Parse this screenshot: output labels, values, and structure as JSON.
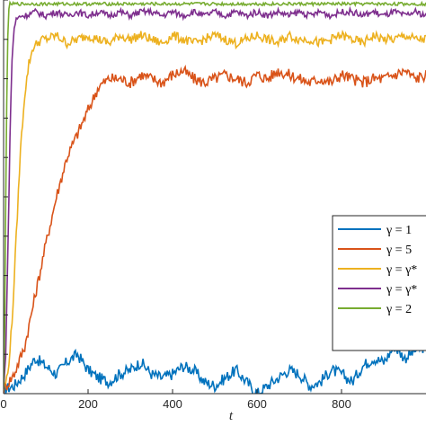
{
  "chart_data": {
    "type": "line",
    "xlabel": "t",
    "ylabel": "",
    "title": "",
    "xlim": [
      0,
      1000
    ],
    "ylim": [
      0,
      1
    ],
    "x_ticks": [
      0,
      200,
      400,
      600,
      800
    ],
    "x_tick_labels": [
      "0",
      "200",
      "400",
      "600",
      "800"
    ],
    "grid": false,
    "legend_position": "lower-right",
    "series": [
      {
        "name": "γ = 1",
        "color": "#0072BD",
        "x": [
          0,
          25,
          50,
          75,
          100,
          125,
          150,
          175,
          200,
          225,
          250,
          275,
          300,
          325,
          350,
          375,
          400,
          425,
          450,
          475,
          500,
          525,
          550,
          575,
          600,
          625,
          650,
          675,
          700,
          725,
          750,
          775,
          800,
          825,
          850,
          875,
          900,
          925,
          950,
          975,
          1000
        ],
        "y": [
          0.01,
          0.02,
          0.05,
          0.09,
          0.07,
          0.05,
          0.08,
          0.1,
          0.06,
          0.04,
          0.03,
          0.05,
          0.06,
          0.08,
          0.05,
          0.04,
          0.05,
          0.07,
          0.06,
          0.03,
          0.02,
          0.04,
          0.06,
          0.03,
          0.0,
          0.02,
          0.04,
          0.06,
          0.05,
          0.02,
          0.03,
          0.06,
          0.05,
          0.03,
          0.07,
          0.09,
          0.08,
          0.12,
          0.09,
          0.11,
          0.12
        ]
      },
      {
        "name": "γ = 5",
        "color": "#D95319",
        "x": [
          0,
          25,
          50,
          75,
          100,
          125,
          150,
          175,
          200,
          225,
          250,
          275,
          300,
          325,
          350,
          375,
          400,
          425,
          450,
          475,
          500,
          525,
          550,
          575,
          600,
          625,
          650,
          675,
          700,
          725,
          750,
          775,
          800,
          825,
          850,
          875,
          900,
          925,
          950,
          975,
          1000
        ],
        "y": [
          0.01,
          0.05,
          0.12,
          0.25,
          0.38,
          0.5,
          0.6,
          0.66,
          0.72,
          0.78,
          0.8,
          0.8,
          0.79,
          0.81,
          0.8,
          0.79,
          0.81,
          0.82,
          0.8,
          0.79,
          0.8,
          0.81,
          0.8,
          0.79,
          0.81,
          0.8,
          0.82,
          0.81,
          0.8,
          0.79,
          0.8,
          0.79,
          0.81,
          0.8,
          0.79,
          0.8,
          0.8,
          0.81,
          0.82,
          0.8,
          0.81
        ]
      },
      {
        "name": "γ = γ*",
        "color": "#EDB120",
        "x": [
          0,
          10,
          20,
          30,
          40,
          50,
          60,
          70,
          80,
          90,
          100,
          125,
          150,
          175,
          200,
          225,
          250,
          275,
          300,
          325,
          350,
          375,
          400,
          425,
          450,
          475,
          500,
          525,
          550,
          575,
          600,
          625,
          650,
          675,
          700,
          725,
          750,
          775,
          800,
          825,
          850,
          875,
          900,
          925,
          950,
          975,
          1000
        ],
        "y": [
          0.01,
          0.05,
          0.18,
          0.4,
          0.62,
          0.76,
          0.84,
          0.88,
          0.89,
          0.9,
          0.9,
          0.91,
          0.89,
          0.9,
          0.91,
          0.9,
          0.89,
          0.91,
          0.9,
          0.91,
          0.9,
          0.89,
          0.91,
          0.9,
          0.89,
          0.9,
          0.91,
          0.9,
          0.89,
          0.9,
          0.91,
          0.9,
          0.89,
          0.91,
          0.9,
          0.9,
          0.89,
          0.9,
          0.91,
          0.9,
          0.89,
          0.91,
          0.9,
          0.9,
          0.91,
          0.9,
          0.9
        ]
      },
      {
        "name": "γ = γ*",
        "color": "#7E2F8E",
        "x": [
          0,
          5,
          10,
          15,
          20,
          25,
          30,
          40,
          50,
          75,
          100,
          125,
          150,
          175,
          200,
          225,
          250,
          275,
          300,
          325,
          350,
          375,
          400,
          425,
          450,
          475,
          500,
          525,
          550,
          575,
          600,
          625,
          650,
          675,
          700,
          725,
          750,
          775,
          800,
          825,
          850,
          875,
          900,
          925,
          950,
          975,
          1000
        ],
        "y": [
          0.01,
          0.1,
          0.35,
          0.65,
          0.85,
          0.93,
          0.95,
          0.96,
          0.96,
          0.97,
          0.96,
          0.97,
          0.96,
          0.97,
          0.96,
          0.97,
          0.96,
          0.97,
          0.96,
          0.97,
          0.97,
          0.96,
          0.97,
          0.96,
          0.97,
          0.96,
          0.97,
          0.96,
          0.97,
          0.96,
          0.97,
          0.96,
          0.97,
          0.96,
          0.97,
          0.96,
          0.97,
          0.96,
          0.97,
          0.97,
          0.96,
          0.97,
          0.96,
          0.97,
          0.96,
          0.97,
          0.96
        ]
      },
      {
        "name": "γ = 2",
        "color": "#77AC30",
        "x": [
          0,
          3,
          6,
          9,
          12,
          15,
          20,
          30,
          50,
          75,
          100,
          125,
          150,
          175,
          200,
          225,
          250,
          275,
          300,
          325,
          350,
          375,
          400,
          425,
          450,
          475,
          500,
          525,
          550,
          575,
          600,
          625,
          650,
          675,
          700,
          725,
          750,
          775,
          800,
          825,
          850,
          875,
          900,
          925,
          950,
          975,
          1000
        ],
        "y": [
          0.01,
          0.2,
          0.6,
          0.88,
          0.97,
          0.99,
          0.99,
          0.99,
          0.99,
          0.99,
          0.99,
          0.99,
          0.99,
          0.99,
          0.99,
          0.99,
          0.99,
          0.99,
          0.99,
          0.99,
          0.99,
          0.99,
          0.99,
          0.99,
          0.99,
          0.99,
          0.99,
          0.99,
          0.99,
          0.99,
          0.99,
          0.99,
          0.99,
          0.99,
          0.99,
          0.99,
          0.99,
          0.99,
          0.99,
          0.99,
          0.99,
          0.99,
          0.99,
          0.99,
          0.99,
          0.99,
          0.99
        ]
      }
    ]
  }
}
